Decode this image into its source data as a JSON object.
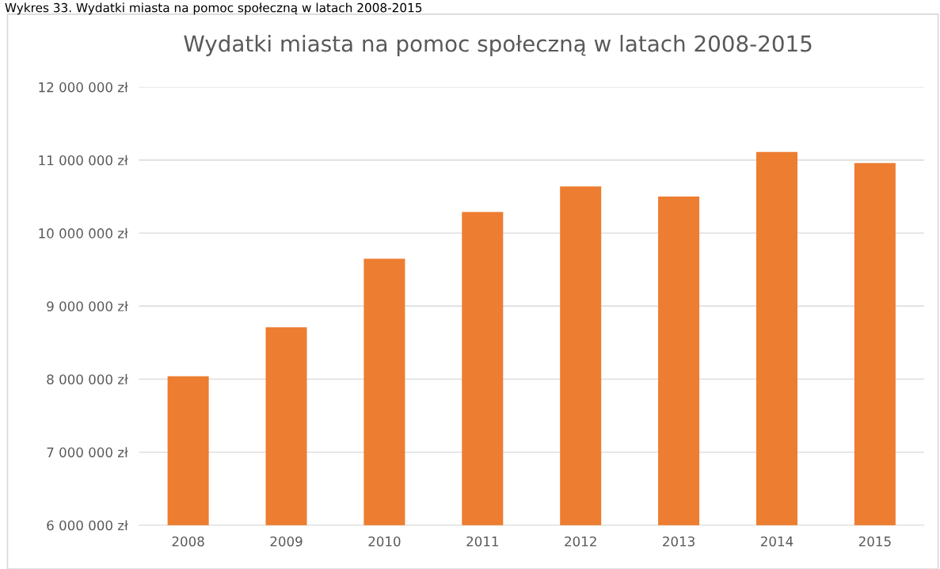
{
  "chart_data": {
    "type": "bar",
    "title": "Wydatki miasta na pomoc społeczną w latach 2008-2015",
    "annotations": [
      "Wykres 33. Wydatki miasta na pomoc społeczną w latach 2008-2015"
    ],
    "categories": [
      "2008",
      "2009",
      "2010",
      "2011",
      "2012",
      "2013",
      "2014",
      "2015"
    ],
    "values": [
      8040000,
      8710000,
      9650000,
      10290000,
      10640000,
      10500000,
      11110000,
      10960000
    ],
    "color": "#ed7d31",
    "ylim": [
      6000000,
      12000000
    ],
    "yticks": [
      {
        "value": 6000000,
        "label": "6 000 000 zł"
      },
      {
        "value": 7000000,
        "label": "7 000 000 zł"
      },
      {
        "value": 8000000,
        "label": "8 000 000 zł"
      },
      {
        "value": 9000000,
        "label": "9 000 000 zł"
      },
      {
        "value": 10000000,
        "label": "10 000 000 zł"
      },
      {
        "value": 11000000,
        "label": "11 000 000 zł"
      },
      {
        "value": 12000000,
        "label": "12 000 000 zł"
      }
    ],
    "grid": "y",
    "legend": false
  }
}
